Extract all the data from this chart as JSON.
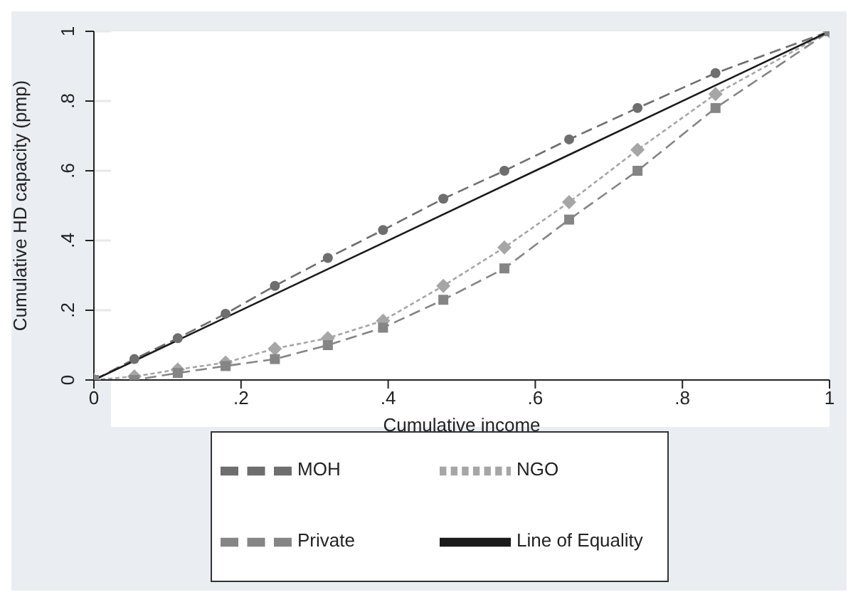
{
  "chart_data": {
    "type": "line",
    "xlabel": "Cumulative income",
    "ylabel": "Cumulative HD capacity (pmp)",
    "xlim": [
      0,
      1
    ],
    "ylim": [
      0,
      1
    ],
    "xticks": [
      0,
      {
        "value": 0.2,
        "label": ".2"
      },
      {
        "value": 0.4,
        "label": ".4"
      },
      {
        "value": 0.6,
        "label": ".6"
      },
      {
        "value": 0.8,
        "label": ".8"
      },
      1
    ],
    "yticks": [
      0,
      {
        "value": 0.2,
        "label": ".2"
      },
      {
        "value": 0.4,
        "label": ".4"
      },
      {
        "value": 0.6,
        "label": ".6"
      },
      {
        "value": 0.8,
        "label": ".8"
      },
      1
    ],
    "grid": "y",
    "legend": "bottom",
    "series": [
      {
        "name": "MOH",
        "color": "#6e6e6e",
        "marker": "circle",
        "line_style": "dashed",
        "x": [
          0,
          0.055,
          0.114,
          0.179,
          0.246,
          0.318,
          0.393,
          0.475,
          0.558,
          0.646,
          0.739,
          0.845,
          1
        ],
        "values": [
          0,
          0.06,
          0.12,
          0.19,
          0.27,
          0.35,
          0.43,
          0.52,
          0.6,
          0.69,
          0.78,
          0.88,
          1
        ]
      },
      {
        "name": "NGO",
        "color": "#a6a6a6",
        "marker": "diamond",
        "line_style": "dotted",
        "x": [
          0,
          0.055,
          0.114,
          0.179,
          0.246,
          0.318,
          0.393,
          0.475,
          0.558,
          0.646,
          0.739,
          0.845,
          1
        ],
        "values": [
          0,
          0.01,
          0.03,
          0.05,
          0.09,
          0.12,
          0.17,
          0.27,
          0.38,
          0.51,
          0.66,
          0.82,
          1
        ]
      },
      {
        "name": "Private",
        "color": "#858585",
        "marker": "square",
        "line_style": "dashed",
        "x": [
          0,
          0.055,
          0.114,
          0.179,
          0.246,
          0.318,
          0.393,
          0.475,
          0.558,
          0.646,
          0.739,
          0.845,
          1
        ],
        "values": [
          0,
          0,
          0.02,
          0.04,
          0.06,
          0.1,
          0.15,
          0.23,
          0.32,
          0.46,
          0.6,
          0.78,
          1
        ]
      },
      {
        "name": "Line of Equality",
        "color": "#1a1a1a",
        "marker": "none",
        "line_style": "solid",
        "x": [
          0,
          1
        ],
        "values": [
          0,
          1
        ]
      }
    ]
  }
}
